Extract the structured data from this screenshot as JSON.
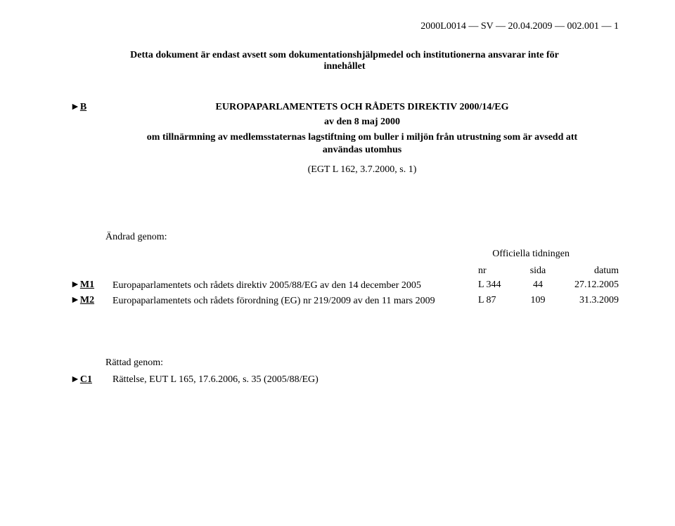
{
  "header": {
    "doc_ref": "2000L0014 — SV — 20.04.2009 — 002.001 — 1"
  },
  "disclaimer": "Detta dokument är endast avsett som dokumentationshjälpmedel och institutionerna ansvarar inte för innehållet",
  "markers": {
    "B": {
      "tri": "►",
      "letter": "B"
    },
    "M1": {
      "tri": "►",
      "letter": "M1"
    },
    "M2": {
      "tri": "►",
      "letter": "M2"
    },
    "C1": {
      "tri": "►",
      "letter": "C1"
    }
  },
  "directive": {
    "title": "EUROPAPARLAMENTETS OCH RÅDETS DIREKTIV 2000/14/EG",
    "date": "av den 8 maj 2000",
    "subject": "om tillnärmning av medlemsstaternas lagstiftning om buller i miljön från utrustning som är avsedd att användas utomhus",
    "citation": "(EGT L 162, 3.7.2000, s. 1)"
  },
  "amended": {
    "label": "Ändrad genom:",
    "oj_label": "Officiella tidningen",
    "headers": {
      "nr": "nr",
      "sida": "sida",
      "datum": "datum"
    },
    "rows": [
      {
        "marker_key": "M1",
        "desc": "Europaparlamentets och rådets direktiv 2005/88/EG av den 14 december 2005",
        "nr": "L 344",
        "sida": "44",
        "datum": "27.12.2005"
      },
      {
        "marker_key": "M2",
        "desc": "Europaparlamentets och rådets förordning (EG) nr 219/2009 av den 11 mars 2009",
        "nr": "L 87",
        "sida": "109",
        "datum": "31.3.2009"
      }
    ]
  },
  "corrected": {
    "label": "Rättad genom:",
    "row": {
      "marker_key": "C1",
      "desc": "Rättelse, EUT L 165, 17.6.2006, s. 35 (2005/88/EG)"
    }
  },
  "colors": {
    "text": "#000000",
    "background": "#ffffff"
  },
  "typography": {
    "base_font": "Times New Roman",
    "base_size_pt": 11
  }
}
